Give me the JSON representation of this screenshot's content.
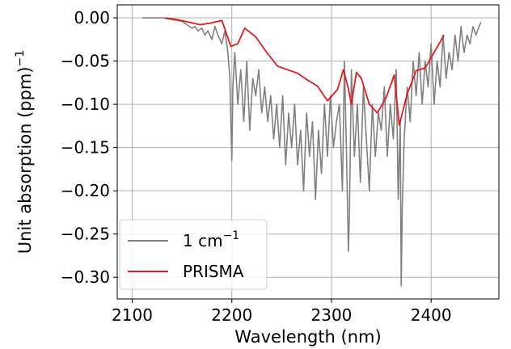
{
  "chart_data": {
    "type": "line",
    "xlabel": "Wavelength (nm)",
    "ylabel": "Unit absorption (ppm)",
    "ylabel_sup": "−1",
    "xlim": [
      2085,
      2468
    ],
    "ylim": [
      -0.325,
      0.015
    ],
    "x_ticks": [
      2100,
      2200,
      2300,
      2400
    ],
    "x_tick_labels": [
      "2100",
      "2200",
      "2300",
      "2400"
    ],
    "y_ticks": [
      0.0,
      -0.05,
      -0.1,
      -0.15,
      -0.2,
      -0.25,
      -0.3
    ],
    "y_tick_labels": [
      "0.00",
      "−0.05",
      "−0.10",
      "−0.15",
      "−0.20",
      "−0.25",
      "−0.30"
    ],
    "grid": true,
    "legend": {
      "position": "lower-left",
      "entries": [
        {
          "label_main": "1 cm",
          "label_sup": "−1",
          "color": "#808080"
        },
        {
          "label_main": "PRISMA",
          "label_sup": "",
          "color": "#e8191c"
        }
      ]
    },
    "series": [
      {
        "color": "#808080",
        "x": [
          2110,
          2120,
          2130,
          2140,
          2150,
          2155,
          2160,
          2163,
          2166,
          2170,
          2173,
          2176,
          2180,
          2183,
          2186,
          2190,
          2193,
          2196,
          2198,
          2200,
          2201,
          2203,
          2206,
          2209,
          2212,
          2215,
          2218,
          2221,
          2224,
          2227,
          2230,
          2233,
          2236,
          2239,
          2242,
          2245,
          2248,
          2251,
          2254,
          2257,
          2260,
          2263,
          2266,
          2269,
          2272,
          2275,
          2278,
          2281,
          2284,
          2287,
          2290,
          2293,
          2296,
          2299,
          2302,
          2305,
          2308,
          2311,
          2313,
          2315,
          2317,
          2318,
          2320,
          2323,
          2326,
          2329,
          2332,
          2335,
          2338,
          2341,
          2344,
          2347,
          2350,
          2353,
          2356,
          2359,
          2362,
          2365,
          2367,
          2369,
          2370,
          2371,
          2373,
          2376,
          2379,
          2382,
          2385,
          2388,
          2391,
          2394,
          2397,
          2400,
          2403,
          2406,
          2409,
          2412,
          2415,
          2418,
          2421,
          2424,
          2427,
          2430,
          2433,
          2436,
          2439,
          2442,
          2445,
          2448,
          2450
        ],
        "y": [
          0.0,
          0.0,
          0.0,
          -0.002,
          -0.004,
          -0.008,
          -0.012,
          -0.01,
          -0.015,
          -0.012,
          -0.02,
          -0.015,
          -0.025,
          -0.01,
          -0.02,
          -0.03,
          -0.015,
          -0.04,
          -0.07,
          -0.165,
          -0.08,
          -0.04,
          -0.1,
          -0.06,
          -0.12,
          -0.05,
          -0.13,
          -0.07,
          -0.09,
          -0.06,
          -0.11,
          -0.08,
          -0.12,
          -0.09,
          -0.14,
          -0.1,
          -0.15,
          -0.09,
          -0.17,
          -0.11,
          -0.15,
          -0.1,
          -0.17,
          -0.13,
          -0.2,
          -0.11,
          -0.16,
          -0.12,
          -0.21,
          -0.13,
          -0.18,
          -0.1,
          -0.16,
          -0.09,
          -0.15,
          -0.12,
          -0.1,
          -0.2,
          -0.05,
          -0.15,
          -0.27,
          -0.23,
          -0.06,
          -0.16,
          -0.1,
          -0.19,
          -0.08,
          -0.14,
          -0.2,
          -0.1,
          -0.16,
          -0.11,
          -0.13,
          -0.08,
          -0.16,
          -0.1,
          -0.14,
          -0.06,
          -0.21,
          -0.12,
          -0.31,
          -0.22,
          -0.14,
          -0.08,
          -0.12,
          -0.05,
          -0.09,
          -0.04,
          -0.1,
          -0.05,
          -0.08,
          -0.03,
          -0.1,
          -0.05,
          -0.08,
          -0.02,
          -0.07,
          -0.04,
          -0.06,
          -0.02,
          -0.05,
          -0.01,
          -0.04,
          -0.02,
          -0.03,
          -0.01,
          -0.02,
          -0.01,
          -0.005
        ]
      },
      {
        "color": "#e8191c",
        "x": [
          2133,
          2145,
          2157,
          2168,
          2179,
          2190,
          2199,
          2206,
          2213,
          2224,
          2235,
          2246,
          2256,
          2266,
          2276,
          2286,
          2296,
          2306,
          2312,
          2317,
          2320,
          2325,
          2330,
          2338,
          2346,
          2355,
          2363,
          2368,
          2376,
          2385,
          2394,
          2403,
          2413
        ],
        "y": [
          0.0,
          -0.002,
          -0.005,
          -0.008,
          -0.006,
          -0.003,
          -0.033,
          -0.03,
          -0.012,
          -0.022,
          -0.04,
          -0.056,
          -0.06,
          -0.064,
          -0.072,
          -0.079,
          -0.096,
          -0.083,
          -0.06,
          -0.082,
          -0.1,
          -0.063,
          -0.07,
          -0.1,
          -0.11,
          -0.092,
          -0.066,
          -0.124,
          -0.088,
          -0.061,
          -0.058,
          -0.04,
          -0.02
        ]
      }
    ]
  }
}
